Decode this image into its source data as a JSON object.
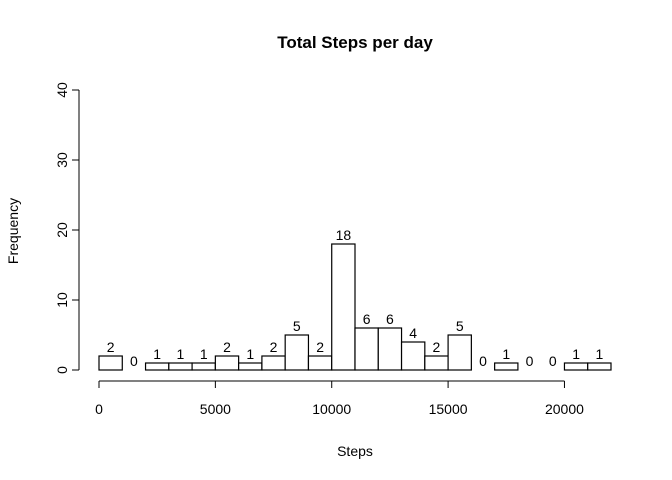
{
  "chart_data": {
    "type": "bar",
    "title": "Total Steps per day",
    "xlabel": "Steps",
    "ylabel": "Frequency",
    "bin_edges": [
      0,
      1000,
      2000,
      3000,
      4000,
      5000,
      6000,
      7000,
      8000,
      9000,
      10000,
      11000,
      12000,
      13000,
      14000,
      15000,
      16000,
      17000,
      18000,
      19000,
      20000,
      21000,
      22000
    ],
    "values": [
      2,
      0,
      1,
      1,
      1,
      2,
      1,
      2,
      5,
      2,
      18,
      6,
      6,
      4,
      2,
      5,
      0,
      1,
      0,
      0,
      1,
      1
    ],
    "xlim": [
      0,
      22000
    ],
    "ylim": [
      0,
      40
    ],
    "x_ticks": [
      0,
      5000,
      10000,
      15000,
      20000
    ],
    "y_ticks": [
      0,
      10,
      20,
      30,
      40
    ],
    "grid": false,
    "data_labels": true
  }
}
